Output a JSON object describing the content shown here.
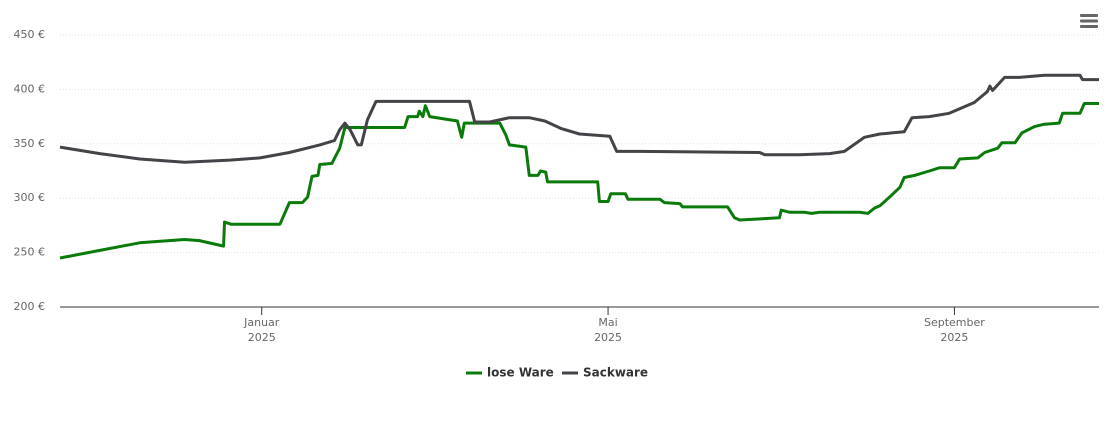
{
  "chart_data": {
    "type": "line",
    "xlim": [
      -1.33,
      10.67
    ],
    "xticks": [
      {
        "value": 1,
        "label": [
          "Januar",
          "2025"
        ]
      },
      {
        "value": 5,
        "label": [
          "Mai",
          "2025"
        ]
      },
      {
        "value": 9,
        "label": [
          "September",
          "2025"
        ]
      }
    ],
    "ylim": [
      200,
      450
    ],
    "yticks": [
      {
        "value": 200,
        "label": "200 €"
      },
      {
        "value": 250,
        "label": "250 €"
      },
      {
        "value": 300,
        "label": "300 €"
      },
      {
        "value": 350,
        "label": "350 €"
      },
      {
        "value": 400,
        "label": "400 €"
      },
      {
        "value": 450,
        "label": "450 €"
      }
    ],
    "grid": true,
    "legend": "bottom",
    "series": [
      {
        "name": "lose Ware",
        "color": "#0a7a0a",
        "x": [
          -1.33,
          -0.87,
          -0.41,
          0.11,
          0.28,
          0.56,
          0.57,
          0.65,
          1.21,
          1.32,
          1.47,
          1.53,
          1.58,
          1.65,
          1.67,
          1.81,
          1.9,
          1.96,
          2.02,
          2.65,
          2.69,
          2.8,
          2.82,
          2.86,
          2.89,
          2.94,
          3.26,
          3.31,
          3.34,
          3.75,
          3.82,
          3.86,
          4.05,
          4.09,
          4.19,
          4.22,
          4.28,
          4.3,
          4.88,
          4.9,
          5.0,
          5.03,
          5.2,
          5.23,
          5.6,
          5.65,
          5.83,
          5.86,
          6.38,
          6.46,
          6.52,
          6.98,
          7.0,
          7.1,
          7.27,
          7.35,
          7.44,
          7.91,
          8.0,
          8.08,
          8.14,
          8.25,
          8.37,
          8.42,
          8.54,
          8.71,
          8.83,
          9.0,
          9.06,
          9.27,
          9.35,
          9.5,
          9.55,
          9.7,
          9.78,
          9.93,
          10.04,
          10.21,
          10.25,
          10.45,
          10.5,
          10.67
        ],
        "values": [
          245,
          252,
          259,
          262,
          261,
          256,
          278,
          276,
          276,
          296,
          296,
          301,
          320,
          321,
          331,
          332,
          346,
          365,
          365,
          365,
          375,
          375,
          380,
          375,
          385,
          375,
          371,
          356,
          369,
          369,
          358,
          349,
          347,
          321,
          321,
          325,
          324,
          315,
          315,
          297,
          297,
          304,
          304,
          299,
          299,
          296,
          295,
          292,
          292,
          282,
          280,
          282,
          289,
          287,
          287,
          286,
          287,
          287,
          286,
          291,
          293,
          301,
          310,
          319,
          321,
          325,
          328,
          328,
          336,
          337,
          342,
          346,
          351,
          351,
          360,
          366,
          368,
          369,
          378,
          378,
          387,
          387
        ]
      },
      {
        "name": "Sackware",
        "color": "#434348",
        "x": [
          -1.33,
          -0.87,
          -0.41,
          0.11,
          0.63,
          0.98,
          1.32,
          1.67,
          1.84,
          1.9,
          1.96,
          2.02,
          2.11,
          2.15,
          2.22,
          2.32,
          3.4,
          3.46,
          3.63,
          3.86,
          4.09,
          4.27,
          4.46,
          4.67,
          5.02,
          5.1,
          5.36,
          6.75,
          6.81,
          7.21,
          7.56,
          7.73,
          7.96,
          8.14,
          8.42,
          8.51,
          8.71,
          8.94,
          9.23,
          9.38,
          9.41,
          9.44,
          9.58,
          9.75,
          10.04,
          10.45,
          10.48,
          10.67
        ],
        "values": [
          347,
          341,
          336,
          333,
          335,
          337,
          342,
          349,
          353,
          363,
          369,
          363,
          349,
          349,
          372,
          389,
          389,
          370,
          370,
          374,
          374,
          371,
          364,
          359,
          357,
          343,
          343,
          342,
          340,
          340,
          341,
          343,
          356,
          359,
          361,
          374,
          375,
          378,
          388,
          398,
          403,
          399,
          411,
          411,
          413,
          413,
          409,
          409
        ]
      }
    ]
  }
}
